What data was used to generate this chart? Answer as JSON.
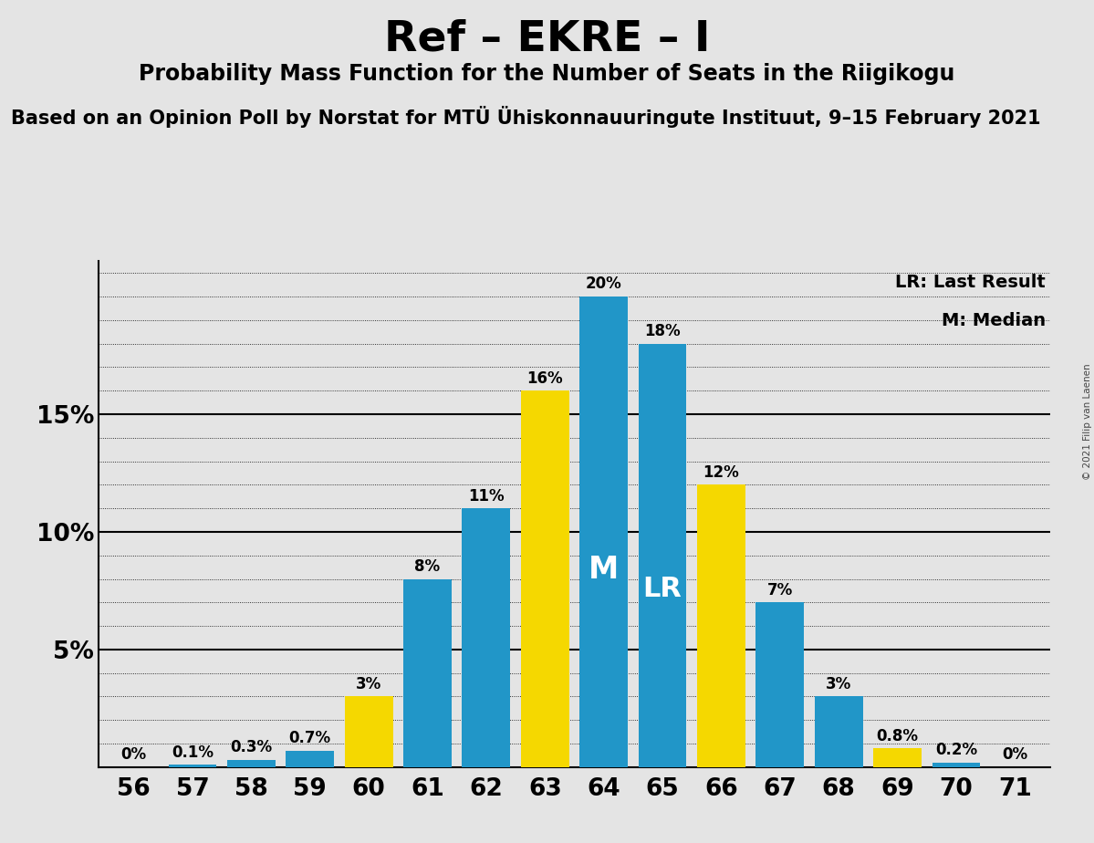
{
  "title": "Ref – EKRE – I",
  "subtitle": "Probability Mass Function for the Number of Seats in the Riigikogu",
  "source": "Based on an Opinion Poll by Norstat for MTÜ Ühiskonnauuringute Instituut, 9–15 February 2021",
  "copyright": "© 2021 Filip van Laenen",
  "seats": [
    56,
    57,
    58,
    59,
    60,
    61,
    62,
    63,
    64,
    65,
    66,
    67,
    68,
    69,
    70,
    71
  ],
  "values": [
    0.0,
    0.1,
    0.3,
    0.7,
    3.0,
    8.0,
    11.0,
    16.0,
    20.0,
    18.0,
    12.0,
    7.0,
    3.0,
    0.8,
    0.2,
    0.0
  ],
  "bar_colors": [
    "#2196C8",
    "#2196C8",
    "#2196C8",
    "#2196C8",
    "#F5D800",
    "#2196C8",
    "#2196C8",
    "#F5D800",
    "#2196C8",
    "#2196C8",
    "#F5D800",
    "#2196C8",
    "#2196C8",
    "#F5D800",
    "#2196C8",
    "#2196C8"
  ],
  "median_seat": 64,
  "lr_seat": 65,
  "ylim_max": 21.5,
  "ytick_vals": [
    5,
    10,
    15
  ],
  "ytick_labels": [
    "5%",
    "10%",
    "15%"
  ],
  "background_color": "#e4e4e4",
  "bar_color_blue": "#2196C8",
  "bar_color_yellow": "#F5D800",
  "legend_lr": "LR: Last Result",
  "legend_m": "M: Median",
  "title_fontsize": 34,
  "subtitle_fontsize": 17,
  "source_fontsize": 15,
  "label_fontsize": 12,
  "tick_fontsize": 19,
  "legend_fontsize": 14,
  "bar_width": 0.82,
  "xlim_left": 55.4,
  "xlim_right": 71.6
}
